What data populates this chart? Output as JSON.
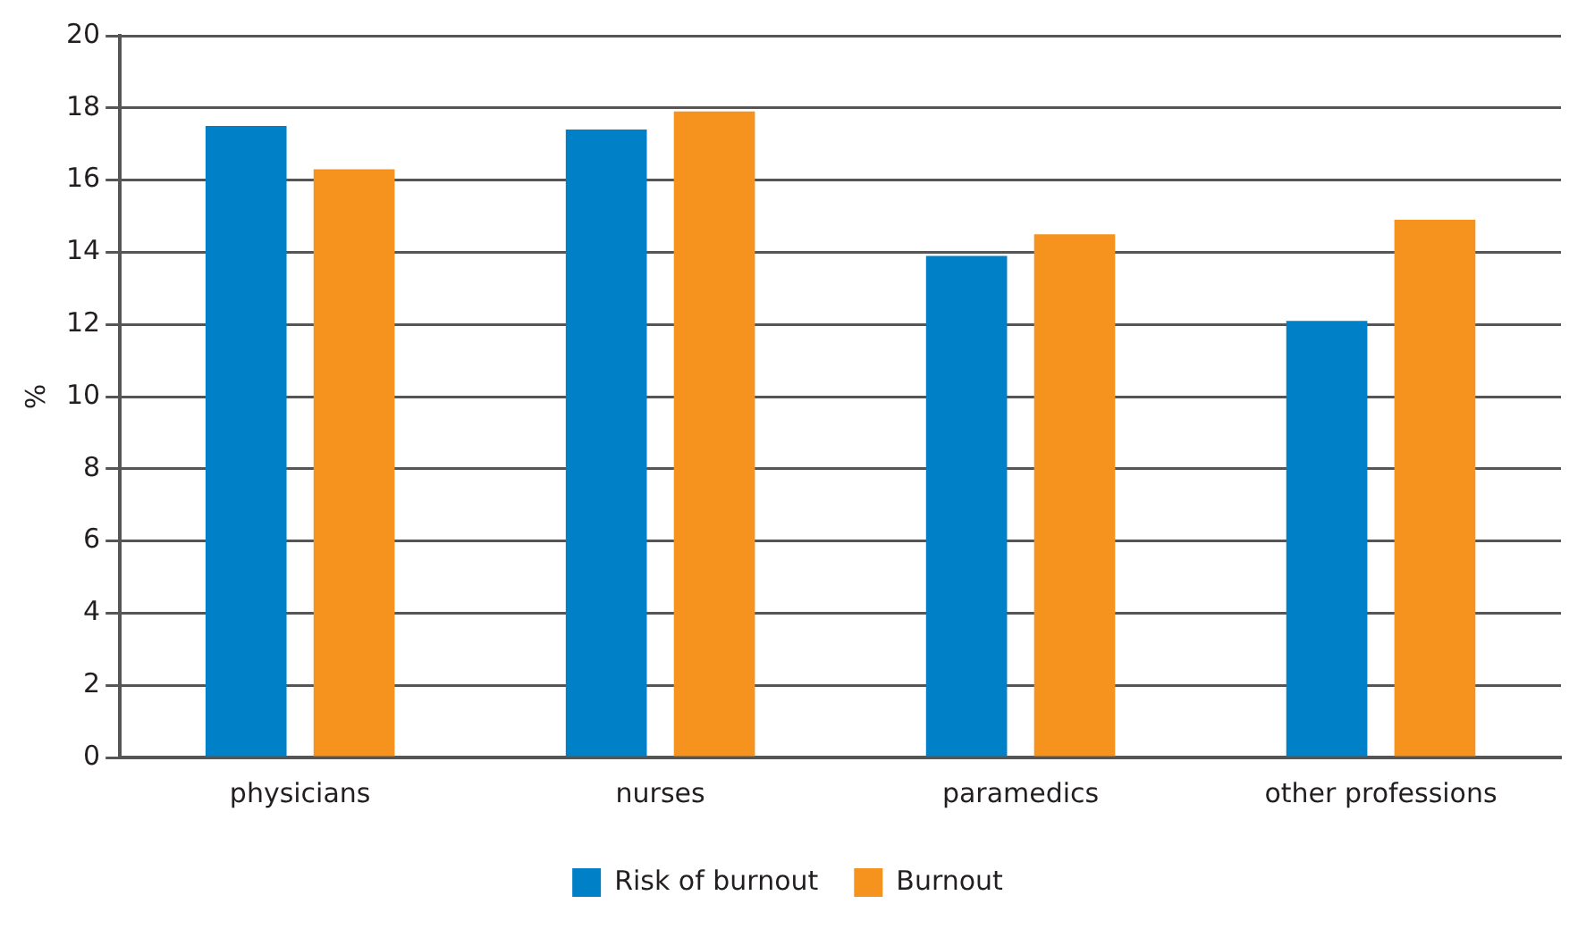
{
  "chart_data": {
    "type": "bar",
    "ylabel": "%",
    "categories": [
      "physicians",
      "nurses",
      "paramedics",
      "other professions"
    ],
    "series": [
      {
        "name": "Risk of burnout",
        "color": "#0080c6",
        "values": [
          17.5,
          17.4,
          13.9,
          12.1
        ]
      },
      {
        "name": "Burnout",
        "color": "#f5931e",
        "values": [
          16.3,
          17.9,
          14.5,
          14.9
        ]
      }
    ],
    "ylim": [
      0,
      20
    ],
    "yticks": [
      0,
      2,
      4,
      6,
      8,
      10,
      12,
      14,
      16,
      18,
      20
    ],
    "grid": "y",
    "legend": "bottom"
  }
}
